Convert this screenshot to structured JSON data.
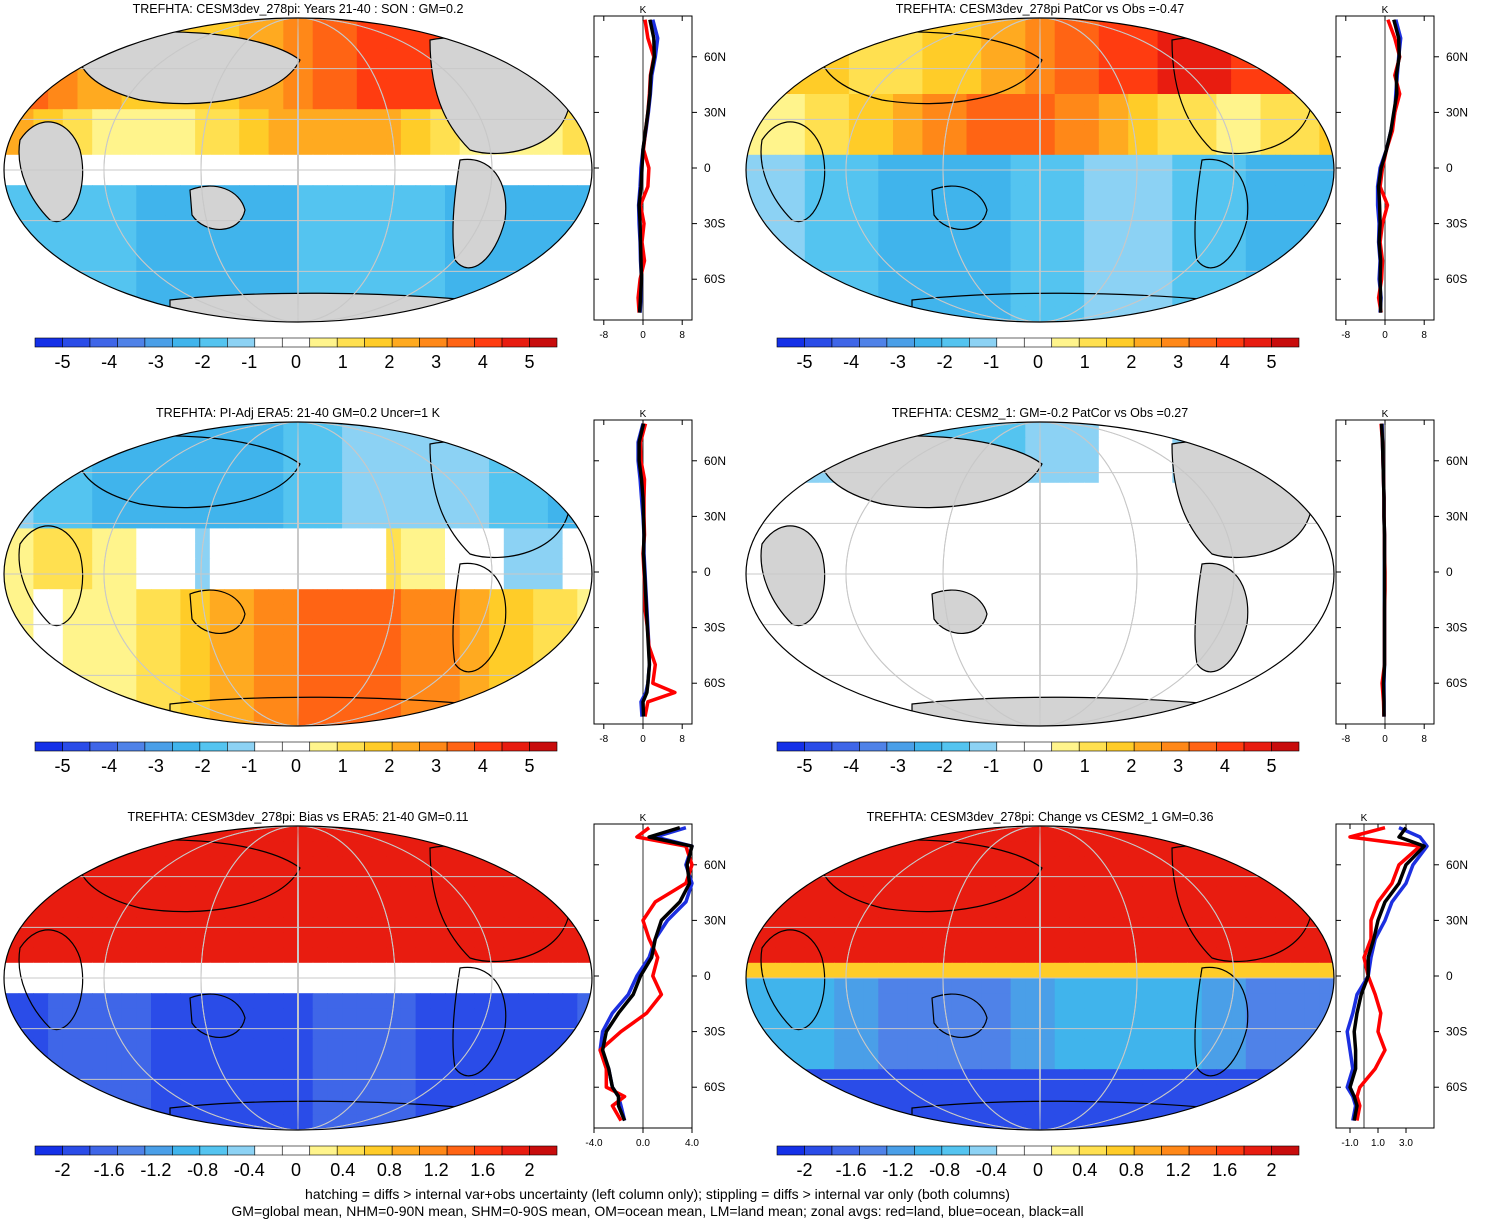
{
  "footer": {
    "line1": "hatching = diffs > internal var+obs uncertainty (left column only); stippling = diffs > internal var only (both columns)",
    "line2": "GM=global mean, NHM=0-90N mean, SHM=0-90S mean, OM=ocean mean, LM=land mean; zonal avgs: red=land, blue=ocean, black=all"
  },
  "colors": {
    "land": "#d3d3d3",
    "coast": "#000000",
    "grid": "#c8c8c8",
    "zonal_land": "#ff0000",
    "zonal_ocean": "#1c2fe0",
    "zonal_all": "#000000",
    "palette": [
      "#1430e8",
      "#2a4ce8",
      "#3f66e8",
      "#4f82e8",
      "#4a9fe8",
      "#40b4ec",
      "#54c4f0",
      "#8cd2f4",
      "#ffffff",
      "#ffffff",
      "#fff48c",
      "#ffe050",
      "#ffcc28",
      "#ffaa20",
      "#ff8818",
      "#ff6414",
      "#ff3c10",
      "#e81c10",
      "#c80c0c"
    ]
  },
  "chart_data": [
    {
      "id": "p1",
      "type": "heatmap",
      "title": "TREFHTA: CESM3dev_278pi: Years 21-40 : SON : GM=0.2",
      "colorbar_ticks": [
        "-5",
        "-4",
        "-3",
        "-2",
        "-1",
        "0",
        "1",
        "2",
        "3",
        "4",
        "5"
      ],
      "colorbar_range": [
        -5,
        5
      ],
      "zonal": {
        "unit": "K",
        "xticks": [
          "-8",
          "0",
          "8"
        ],
        "xlim": [
          -10,
          10
        ],
        "lat_ticks": [
          "60N",
          "30N",
          "0",
          "30S",
          "60S"
        ],
        "lat": [
          80,
          70,
          60,
          50,
          40,
          30,
          20,
          10,
          0,
          -10,
          -20,
          -30,
          -40,
          -50,
          -60,
          -70,
          -78
        ],
        "land": [
          0.4,
          1.0,
          2.2,
          1.5,
          1.3,
          1.0,
          0.5,
          0.1,
          1.2,
          1.0,
          -0.5,
          0.2,
          -0.2,
          0.3,
          -0.6,
          -1.0,
          -0.8
        ],
        "ocean": [
          2.0,
          3.0,
          2.5,
          1.8,
          1.5,
          1.1,
          0.6,
          0.0,
          -0.4,
          -0.6,
          -0.9,
          -0.8,
          -0.6,
          -0.5,
          -0.3,
          -0.4,
          -0.6
        ],
        "all": [
          1.4,
          2.2,
          2.3,
          1.6,
          1.4,
          1.0,
          0.5,
          0.0,
          -0.2,
          -0.4,
          -0.8,
          -0.6,
          -0.5,
          -0.4,
          -0.3,
          -0.5,
          -0.7
        ]
      },
      "map_pattern": "arctic-warm"
    },
    {
      "id": "p2",
      "type": "heatmap",
      "title": "TREFHTA: CESM3dev_278pi PatCor vs Obs =-0.47",
      "colorbar_ticks": [
        "-5",
        "-4",
        "-3",
        "-2",
        "-1",
        "0",
        "1",
        "2",
        "3",
        "4",
        "5"
      ],
      "colorbar_range": [
        -5,
        5
      ],
      "zonal": {
        "unit": "K",
        "xticks": [
          "-8",
          "0",
          "8"
        ],
        "xlim": [
          -10,
          10
        ],
        "lat_ticks": [
          "60N",
          "30N",
          "0",
          "30S",
          "60S"
        ],
        "lat": [
          80,
          70,
          60,
          50,
          40,
          30,
          20,
          10,
          0,
          -10,
          -20,
          -30,
          -40,
          -50,
          -60,
          -70,
          -78
        ],
        "land": [
          0.6,
          2.0,
          3.0,
          2.0,
          3.0,
          2.0,
          1.5,
          0.3,
          -0.5,
          -1.0,
          0.5,
          -0.5,
          -1.0,
          -0.5,
          -0.7,
          -1.3,
          -0.8
        ],
        "ocean": [
          2.2,
          3.2,
          2.8,
          2.5,
          2.2,
          2.0,
          1.2,
          0.3,
          -1.0,
          -1.5,
          -1.5,
          -1.2,
          -1.3,
          -1.0,
          -1.2,
          -0.8,
          -1.0
        ],
        "all": [
          1.8,
          2.8,
          2.9,
          2.3,
          2.4,
          1.8,
          1.2,
          0.3,
          -0.8,
          -1.3,
          -1.1,
          -1.0,
          -1.2,
          -0.9,
          -1.0,
          -0.9,
          -0.9
        ]
      },
      "map_pattern": "warm-north"
    },
    {
      "id": "p3",
      "type": "heatmap",
      "title": "TREFHTA: PI-Adj ERA5: 21-40 GM=0.2 Uncer=1 K",
      "colorbar_ticks": [
        "-5",
        "-4",
        "-3",
        "-2",
        "-1",
        "0",
        "1",
        "2",
        "3",
        "4",
        "5"
      ],
      "colorbar_range": [
        -5,
        5
      ],
      "zonal": {
        "unit": "K",
        "xticks": [
          "-8",
          "0",
          "8"
        ],
        "xlim": [
          -10,
          10
        ],
        "lat_ticks": [
          "60N",
          "30N",
          "0",
          "30S",
          "60S"
        ],
        "lat": [
          80,
          70,
          60,
          50,
          40,
          30,
          20,
          10,
          0,
          -10,
          -20,
          -30,
          -40,
          -50,
          -60,
          -65,
          -70,
          -78
        ],
        "land": [
          0.5,
          -0.5,
          -0.4,
          0.3,
          0.2,
          0.2,
          0.3,
          0.0,
          0.2,
          0.4,
          0.4,
          0.9,
          1.2,
          2.5,
          2.0,
          6.5,
          1.0,
          0.4
        ],
        "ocean": [
          0.0,
          -1.0,
          -1.0,
          -0.6,
          -0.3,
          0.0,
          0.2,
          0.2,
          0.4,
          0.6,
          0.8,
          1.0,
          1.2,
          1.3,
          1.0,
          0.6,
          -0.4,
          -0.2
        ],
        "all": [
          0.1,
          -0.8,
          -0.8,
          -0.3,
          0.0,
          0.1,
          0.2,
          0.1,
          0.3,
          0.5,
          0.7,
          0.9,
          1.1,
          1.3,
          1.0,
          0.8,
          0.0,
          0.1
        ]
      },
      "map_pattern": "southern-warm"
    },
    {
      "id": "p4",
      "type": "heatmap",
      "title": "TREFHTA: CESM2_1: GM=-0.2 PatCor vs Obs =0.27",
      "colorbar_ticks": [
        "-5",
        "-4",
        "-3",
        "-2",
        "-1",
        "0",
        "1",
        "2",
        "3",
        "4",
        "5"
      ],
      "colorbar_range": [
        -5,
        5
      ],
      "zonal": {
        "unit": "K",
        "xticks": [
          "-8",
          "0",
          "8"
        ],
        "xlim": [
          -10,
          10
        ],
        "lat_ticks": [
          "60N",
          "30N",
          "0",
          "30S",
          "60S"
        ],
        "lat": [
          80,
          70,
          60,
          50,
          40,
          30,
          20,
          10,
          0,
          -10,
          -20,
          -30,
          -40,
          -50,
          -60,
          -70,
          -78
        ],
        "land": [
          -0.8,
          -0.5,
          -0.4,
          -0.3,
          -0.2,
          -0.2,
          -0.1,
          -0.1,
          0.0,
          0.0,
          -0.1,
          -0.1,
          -0.1,
          -0.1,
          -0.6,
          -0.3,
          -0.2
        ],
        "ocean": [
          -0.6,
          -0.5,
          -0.4,
          -0.3,
          -0.2,
          -0.2,
          -0.1,
          -0.1,
          -0.1,
          -0.1,
          -0.1,
          -0.1,
          -0.1,
          -0.1,
          -0.2,
          -0.2,
          -0.2
        ],
        "all": [
          -0.7,
          -0.5,
          -0.4,
          -0.3,
          -0.2,
          -0.2,
          -0.1,
          -0.1,
          -0.1,
          -0.1,
          -0.1,
          -0.1,
          -0.1,
          -0.1,
          -0.3,
          -0.2,
          -0.2
        ]
      },
      "map_pattern": "near-zero"
    },
    {
      "id": "p5",
      "type": "heatmap",
      "title": "TREFHTA: CESM3dev_278pi: Bias vs ERA5: 21-40  GM=0.11",
      "colorbar_ticks": [
        "-2",
        "-1.6",
        "-1.2",
        "-0.8",
        "-0.4",
        "0",
        "0.4",
        "0.8",
        "1.2",
        "1.6",
        "2"
      ],
      "colorbar_range": [
        -2,
        2
      ],
      "zonal": {
        "unit": "K",
        "xticks": [
          "-4.0",
          "0.0",
          "4.0"
        ],
        "xlim": [
          -4,
          4
        ],
        "lat_ticks": [
          "60N",
          "30N",
          "0",
          "30S",
          "60S"
        ],
        "lat": [
          80,
          75,
          70,
          60,
          50,
          40,
          30,
          20,
          10,
          0,
          -10,
          -20,
          -30,
          -40,
          -50,
          -60,
          -65,
          -70,
          -78
        ],
        "land": [
          0.5,
          -0.5,
          3.5,
          4.0,
          3.5,
          1.0,
          0.0,
          0.5,
          1.2,
          0.8,
          1.5,
          0.3,
          -1.8,
          -3.5,
          -3.0,
          -3.0,
          -1.5,
          -2.5,
          -1.8
        ],
        "ocean": [
          3.5,
          1.0,
          4.0,
          3.5,
          4.0,
          3.5,
          2.0,
          1.0,
          0.5,
          -0.5,
          -1.2,
          -2.5,
          -3.3,
          -3.5,
          -2.8,
          -2.5,
          -2.0,
          -1.8,
          -1.5
        ],
        "all": [
          3.0,
          0.5,
          4.0,
          3.6,
          3.8,
          3.0,
          1.5,
          1.0,
          0.7,
          -0.2,
          -0.8,
          -2.0,
          -3.0,
          -3.3,
          -2.8,
          -2.5,
          -2.0,
          -2.0,
          -1.5
        ]
      },
      "map_pattern": "north-south-dipole"
    },
    {
      "id": "p6",
      "type": "heatmap",
      "title": "TREFHTA: CESM3dev_278pi: Change vs CESM2_1 GM=0.36",
      "colorbar_ticks": [
        "-2",
        "-1.6",
        "-1.2",
        "-0.8",
        "-0.4",
        "0",
        "0.4",
        "0.8",
        "1.2",
        "1.6",
        "2"
      ],
      "colorbar_range": [
        -2,
        2
      ],
      "zonal": {
        "unit": "K",
        "xticks": [
          "-1.0",
          "1.0",
          "3.0"
        ],
        "xlim": [
          -2.0,
          5.0
        ],
        "lat_ticks": [
          "60N",
          "30N",
          "0",
          "30S",
          "60S"
        ],
        "lat": [
          80,
          75,
          70,
          60,
          50,
          40,
          30,
          20,
          10,
          0,
          -10,
          -20,
          -30,
          -40,
          -50,
          -60,
          -65,
          -70,
          -78
        ],
        "land": [
          1.5,
          -1.0,
          4.0,
          2.5,
          2.0,
          1.0,
          0.5,
          0.5,
          0.0,
          0.3,
          0.8,
          1.2,
          1.0,
          1.5,
          0.8,
          -0.3,
          -0.5,
          -0.3,
          -0.5
        ],
        "ocean": [
          2.5,
          4.0,
          4.5,
          3.5,
          3.0,
          2.0,
          1.5,
          0.8,
          0.5,
          0.3,
          -0.5,
          -0.8,
          -1.2,
          -1.0,
          -0.8,
          -1.2,
          -0.8,
          -0.6,
          -0.8
        ],
        "all": [
          3.0,
          2.5,
          4.3,
          3.0,
          2.5,
          1.5,
          1.0,
          0.7,
          0.3,
          0.3,
          -0.2,
          -0.5,
          -0.7,
          -0.6,
          -0.6,
          -1.0,
          -0.7,
          -0.5,
          -0.7
        ]
      },
      "map_pattern": "north-south-change"
    }
  ]
}
